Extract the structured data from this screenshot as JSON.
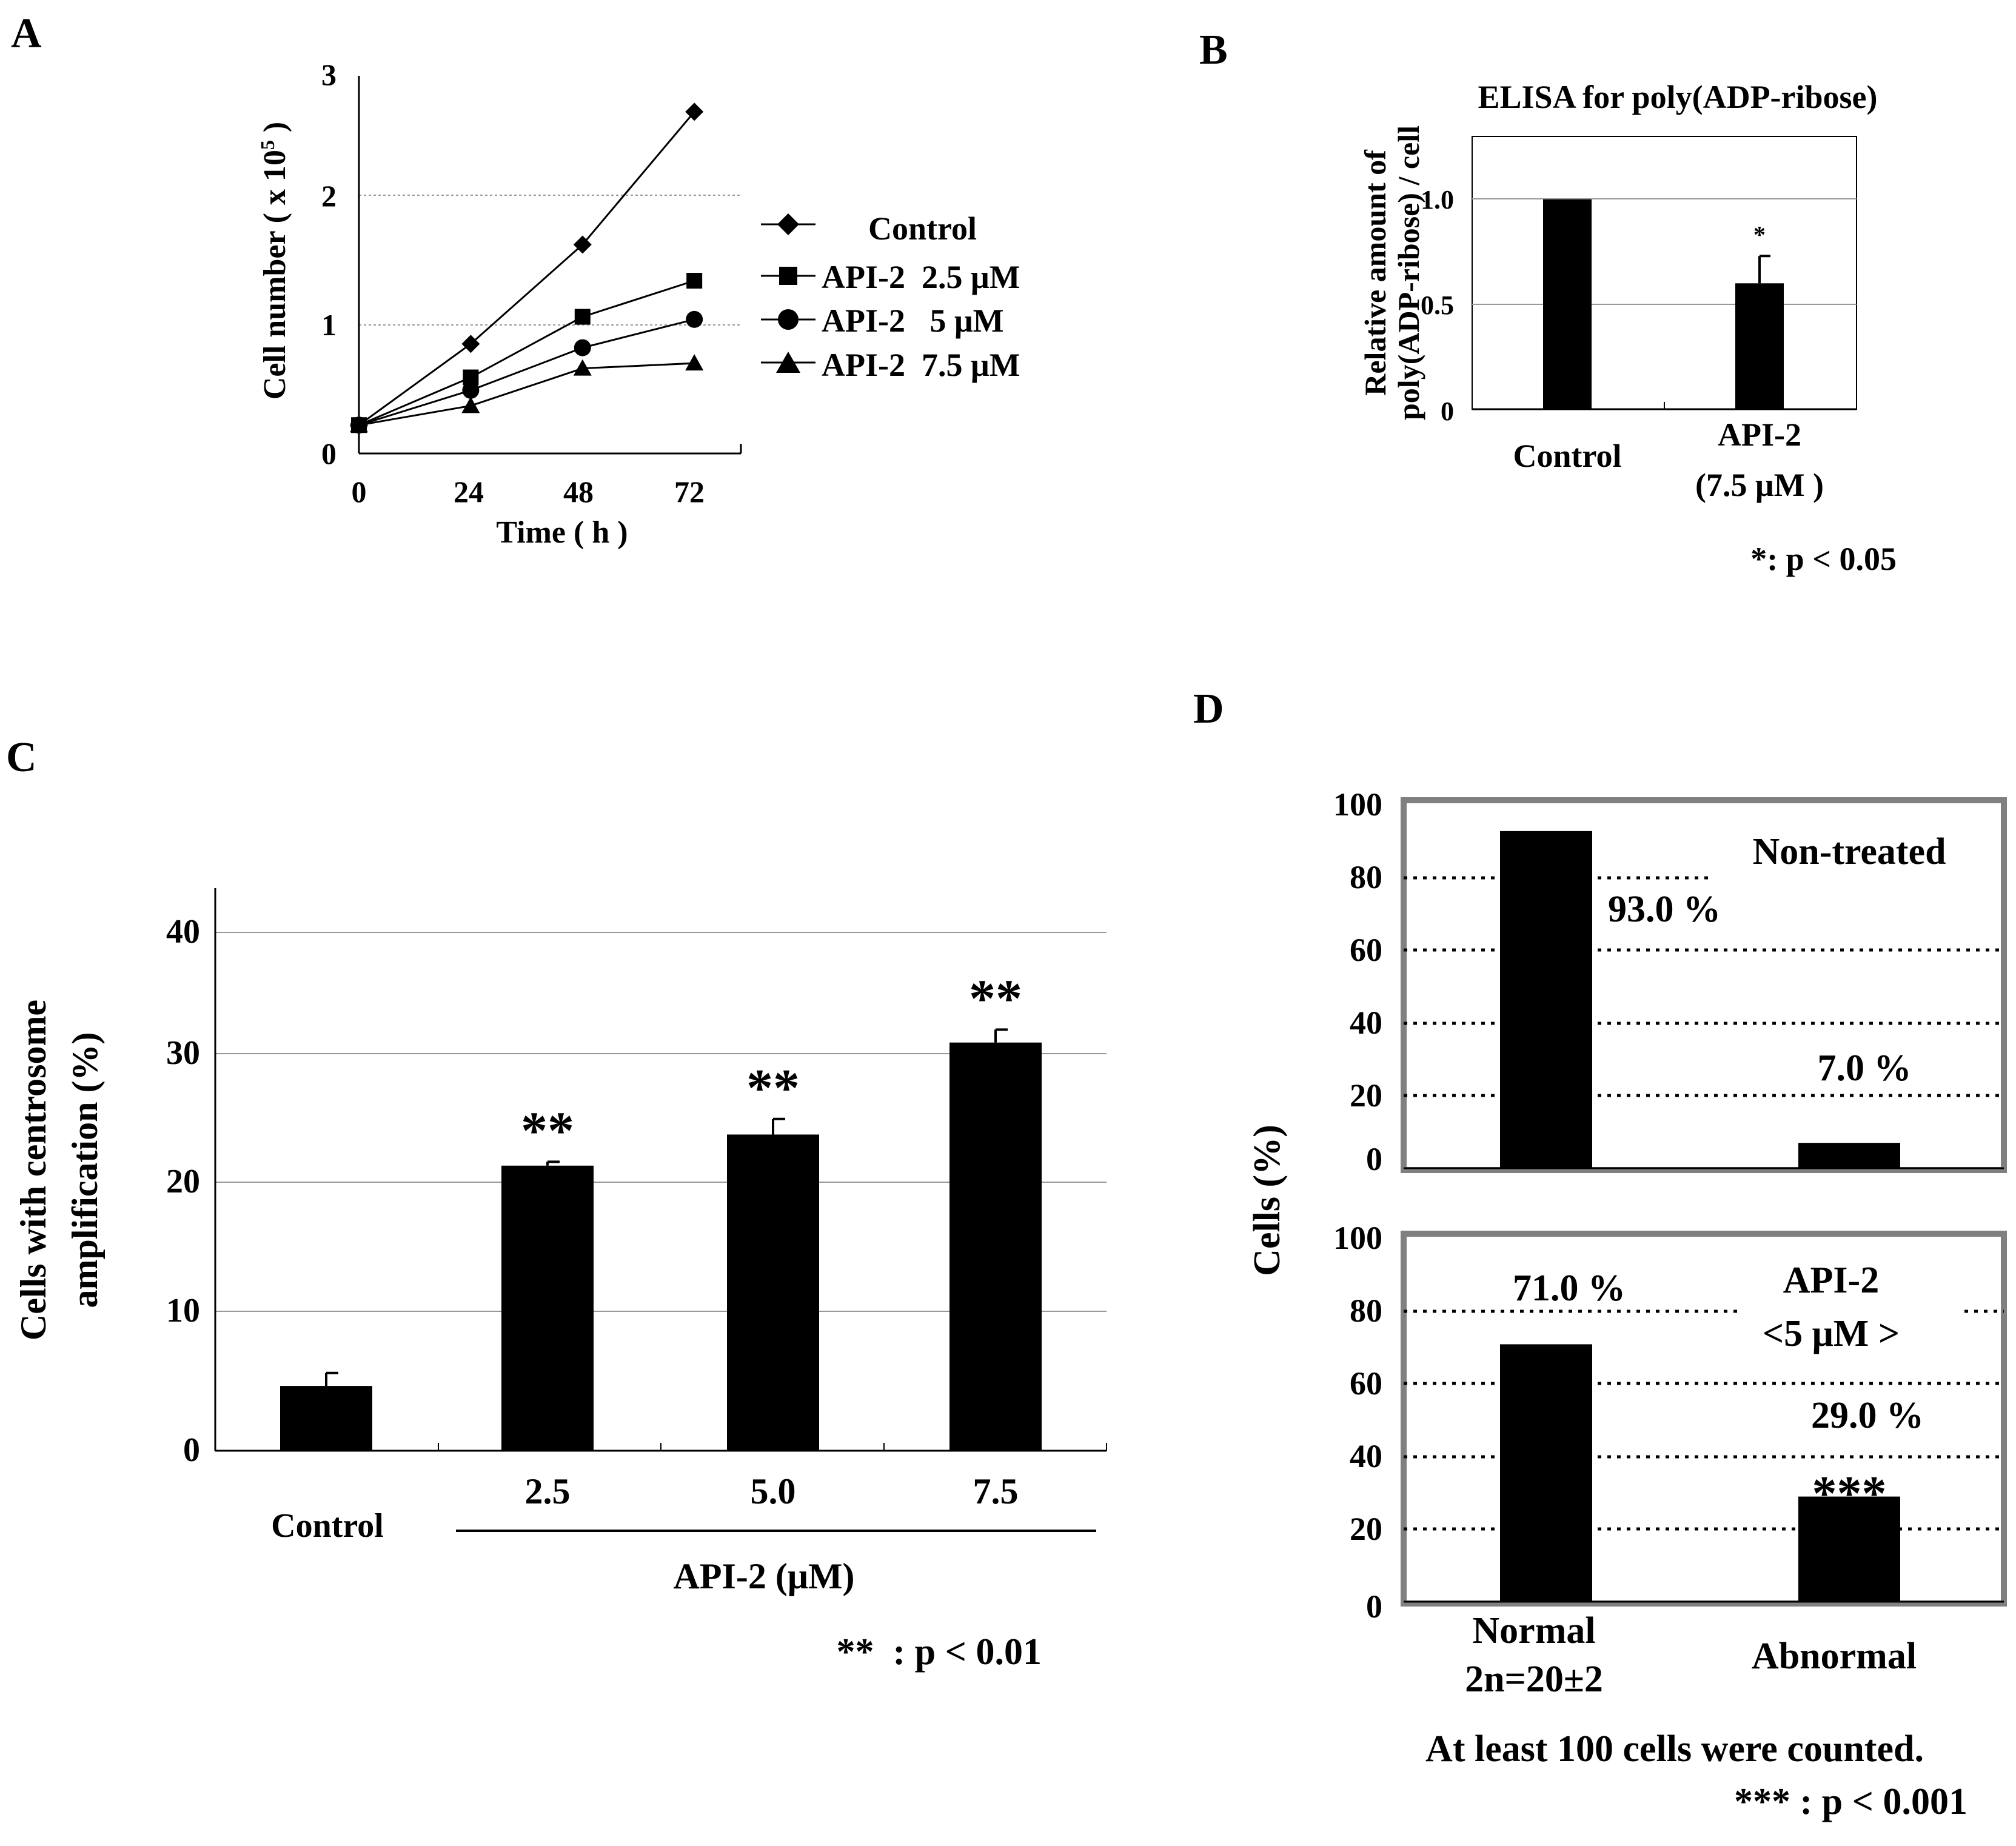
{
  "panels": {
    "A": {
      "letter": "A"
    },
    "B": {
      "letter": "B"
    },
    "C": {
      "letter": "C"
    },
    "D": {
      "letter": "D"
    }
  },
  "chart_data": [
    {
      "id": "A",
      "type": "line",
      "xlabel": "Time ( h )",
      "ylabel_main": "Cell number ( x 10",
      "ylabel_sup": "5",
      "ylabel_end": " )",
      "x": [
        0,
        24,
        48,
        72
      ],
      "x_tick_labels": [
        "0",
        "24",
        "48",
        "72"
      ],
      "xlim": [
        0,
        82
      ],
      "ylim": [
        0,
        3
      ],
      "y_ticks": [
        0,
        1,
        2,
        3
      ],
      "y_tick_labels": [
        "0",
        "1",
        "2",
        "3"
      ],
      "gridlines": [
        1,
        2
      ],
      "series": [
        {
          "name": "Control",
          "marker": "diamond",
          "values": [
            0.22,
            0.85,
            1.62,
            2.65
          ]
        },
        {
          "name": "API-2  2.5 μM",
          "marker": "square",
          "values": [
            0.22,
            0.59,
            1.06,
            1.34
          ]
        },
        {
          "name": "API-2   5 μM",
          "marker": "circle",
          "values": [
            0.22,
            0.49,
            0.82,
            1.04
          ]
        },
        {
          "name": "API-2  7.5 μM",
          "marker": "triangle",
          "values": [
            0.22,
            0.37,
            0.66,
            0.7
          ]
        }
      ]
    },
    {
      "id": "B",
      "type": "bar",
      "title": "ELISA for poly(ADP-ribose)",
      "ylabel_line1": "Relative amount of",
      "ylabel_line2": "poly(ADP-ribose) / cell",
      "categories": [
        [
          "Control"
        ],
        [
          "API-2",
          "(7.5 μM )"
        ]
      ],
      "values": [
        1.0,
        0.6
      ],
      "errors": [
        0,
        0.13
      ],
      "ylim": [
        0,
        1.3
      ],
      "y_ticks": [
        0,
        0.5,
        1.0
      ],
      "y_tick_labels": [
        "0",
        "0.5",
        "1.0"
      ],
      "significance": [
        "",
        "*"
      ],
      "footnote": "*: p < 0.05"
    },
    {
      "id": "C",
      "type": "bar",
      "ylabel_line1": "Cells with centrosome",
      "ylabel_line2": "amplification (%)",
      "categories": [
        "Control",
        "2.5",
        "5.0",
        "7.5"
      ],
      "values": [
        5.0,
        22.0,
        24.4,
        31.5
      ],
      "errors": [
        1.0,
        0.3,
        1.2,
        1.0
      ],
      "ylim": [
        0,
        43
      ],
      "y_ticks": [
        0,
        10,
        20,
        30,
        40
      ],
      "y_tick_labels": [
        "0",
        "10",
        "20",
        "30",
        "40"
      ],
      "significance": [
        "",
        "**",
        "**",
        "**"
      ],
      "group_label": "API-2 (μM)",
      "footnote": "**  : p < 0.01"
    },
    {
      "id": "D",
      "type": "bar",
      "ylabel": "Cells (%)",
      "categories": [
        [
          "Normal",
          "2n=20±2"
        ],
        [
          "Abnormal"
        ]
      ],
      "ylim": [
        0,
        100
      ],
      "y_ticks": [
        0,
        20,
        40,
        60,
        80,
        100
      ],
      "y_tick_labels": [
        "0",
        "20",
        "40",
        "60",
        "80",
        "100"
      ],
      "subplots": [
        {
          "name": "Non-treated",
          "name_lines": [
            "Non-treated"
          ],
          "values": [
            93.0,
            7.0
          ],
          "value_labels": [
            "93.0 %",
            "7.0 %"
          ],
          "significance": [
            "",
            ""
          ]
        },
        {
          "name": "API-2 <5 μM >",
          "name_lines": [
            "API-2",
            "<5 μM >"
          ],
          "values": [
            71.0,
            29.0
          ],
          "value_labels": [
            "71.0 %",
            "29.0 %"
          ],
          "significance": [
            "",
            "***"
          ]
        }
      ],
      "note": "At least 100 cells were counted.",
      "footnote": "*** : p < 0.001"
    }
  ]
}
